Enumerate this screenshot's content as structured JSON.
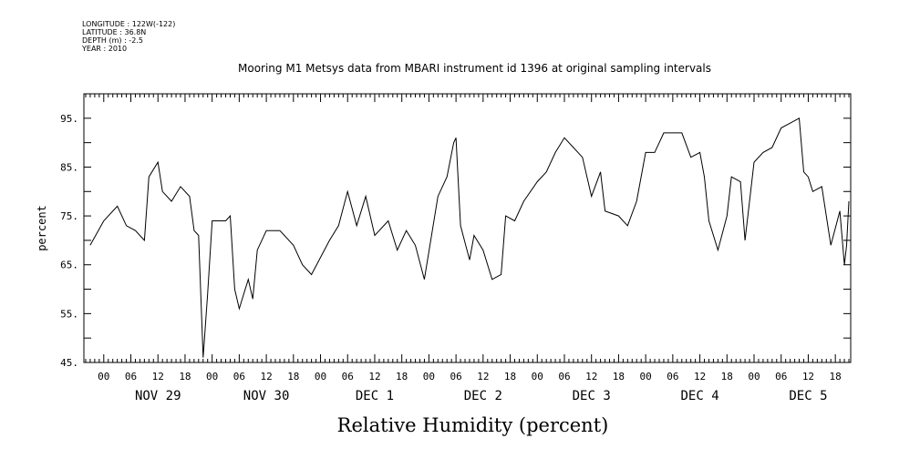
{
  "header": {
    "longitude": "LONGITUDE : 122W(-122)",
    "latitude": "LATITUDE : 36.8N",
    "depth": "DEPTH (m) : -2.5",
    "year": "YEAR : 2010"
  },
  "chart_data": {
    "type": "line",
    "title": "Mooring M1 Metsys data from MBARI instrument id 1396 at original sampling intervals",
    "xlabel": "Relative Humidity (percent)",
    "ylabel": "percent",
    "ylim": [
      45,
      100
    ],
    "xlim_hours": [
      -4.4,
      165.4
    ],
    "y_ticks": [
      "45.",
      "55.",
      "65.",
      "75.",
      "85.",
      "95."
    ],
    "x_hour_ticks": [
      "00",
      "06",
      "12",
      "18",
      "00",
      "06",
      "12",
      "18",
      "00",
      "06",
      "12",
      "18",
      "00",
      "06",
      "12",
      "18",
      "00",
      "06",
      "12",
      "18",
      "00",
      "06",
      "12",
      "18",
      "00",
      "06",
      "12",
      "18"
    ],
    "x_day_labels": [
      "NOV 29",
      "NOV 30",
      "DEC  1",
      "DEC  2",
      "DEC  3",
      "DEC  4",
      "DEC  5"
    ],
    "series": [
      {
        "x": [
          "2010-11-28T21:00",
          "2010-11-29T00:00",
          "2010-11-29T03:00",
          "2010-11-29T05:00",
          "2010-11-29T07:00",
          "2010-11-29T09:00",
          "2010-11-29T10:00",
          "2010-11-29T12:00",
          "2010-11-29T13:00",
          "2010-11-29T15:00",
          "2010-11-29T17:00",
          "2010-11-29T19:00",
          "2010-11-29T20:00",
          "2010-11-29T21:00",
          "2010-11-29T22:00",
          "2010-11-29T23:00",
          "2010-11-30T00:00",
          "2010-11-30T03:00",
          "2010-11-30T04:00",
          "2010-11-30T05:00",
          "2010-11-30T06:00",
          "2010-11-30T07:00",
          "2010-11-30T08:00",
          "2010-11-30T09:00",
          "2010-11-30T10:00",
          "2010-11-30T12:00",
          "2010-11-30T15:00",
          "2010-11-30T18:00",
          "2010-11-30T20:00",
          "2010-11-30T22:00",
          "2010-12-01T02:00",
          "2010-12-01T04:00",
          "2010-12-01T06:00",
          "2010-12-01T08:00",
          "2010-12-01T10:00",
          "2010-12-01T12:00",
          "2010-12-01T15:00",
          "2010-12-01T17:00",
          "2010-12-01T19:00",
          "2010-12-01T21:00",
          "2010-12-01T23:00",
          "2010-12-02T02:00",
          "2010-12-02T04:00",
          "2010-12-02T05:30",
          "2010-12-02T06:00",
          "2010-12-02T07:00",
          "2010-12-02T09:00",
          "2010-12-02T10:00",
          "2010-12-02T12:00",
          "2010-12-02T14:00",
          "2010-12-02T16:00",
          "2010-12-02T17:00",
          "2010-12-02T19:00",
          "2010-12-02T21:00",
          "2010-12-03T00:00",
          "2010-12-03T02:00",
          "2010-12-03T04:00",
          "2010-12-03T06:00",
          "2010-12-03T08:00",
          "2010-12-03T10:00",
          "2010-12-03T12:00",
          "2010-12-03T14:00",
          "2010-12-03T15:00",
          "2010-12-03T18:00",
          "2010-12-03T20:00",
          "2010-12-03T22:00",
          "2010-12-04T00:00",
          "2010-12-04T02:00",
          "2010-12-04T04:00",
          "2010-12-04T06:00",
          "2010-12-04T08:00",
          "2010-12-04T10:00",
          "2010-12-04T12:00",
          "2010-12-04T13:00",
          "2010-12-04T14:00",
          "2010-12-04T16:00",
          "2010-12-04T18:00",
          "2010-12-04T19:00",
          "2010-12-04T21:00",
          "2010-12-04T22:00",
          "2010-12-05T00:00",
          "2010-12-05T02:00",
          "2010-12-05T04:00",
          "2010-12-05T06:00",
          "2010-12-05T08:00",
          "2010-12-05T10:00",
          "2010-12-05T11:00",
          "2010-12-05T12:00",
          "2010-12-05T13:00",
          "2010-12-05T15:00",
          "2010-12-05T17:00",
          "2010-12-05T19:00",
          "2010-12-05T20:00",
          "2010-12-05T20:30",
          "2010-12-05T21:00"
        ],
        "values": [
          69,
          74,
          77,
          73,
          72,
          70,
          83,
          86,
          80,
          78,
          81,
          79,
          72,
          71,
          46,
          59,
          74,
          74,
          75,
          60,
          56,
          59,
          62,
          58,
          68,
          72,
          72,
          69,
          65,
          63,
          70,
          73,
          80,
          73,
          79,
          71,
          74,
          68,
          72,
          69,
          62,
          79,
          83,
          90,
          91,
          73,
          66,
          71,
          68,
          62,
          63,
          75,
          74,
          78,
          82,
          84,
          88,
          91,
          89,
          87,
          79,
          84,
          76,
          75,
          73,
          78,
          88,
          88,
          92,
          92,
          92,
          87,
          88,
          83,
          74,
          68,
          75,
          83,
          82,
          70,
          86,
          88,
          89,
          93,
          94,
          95,
          84,
          83,
          80,
          81,
          69,
          76,
          65,
          69,
          78
        ]
      }
    ]
  }
}
